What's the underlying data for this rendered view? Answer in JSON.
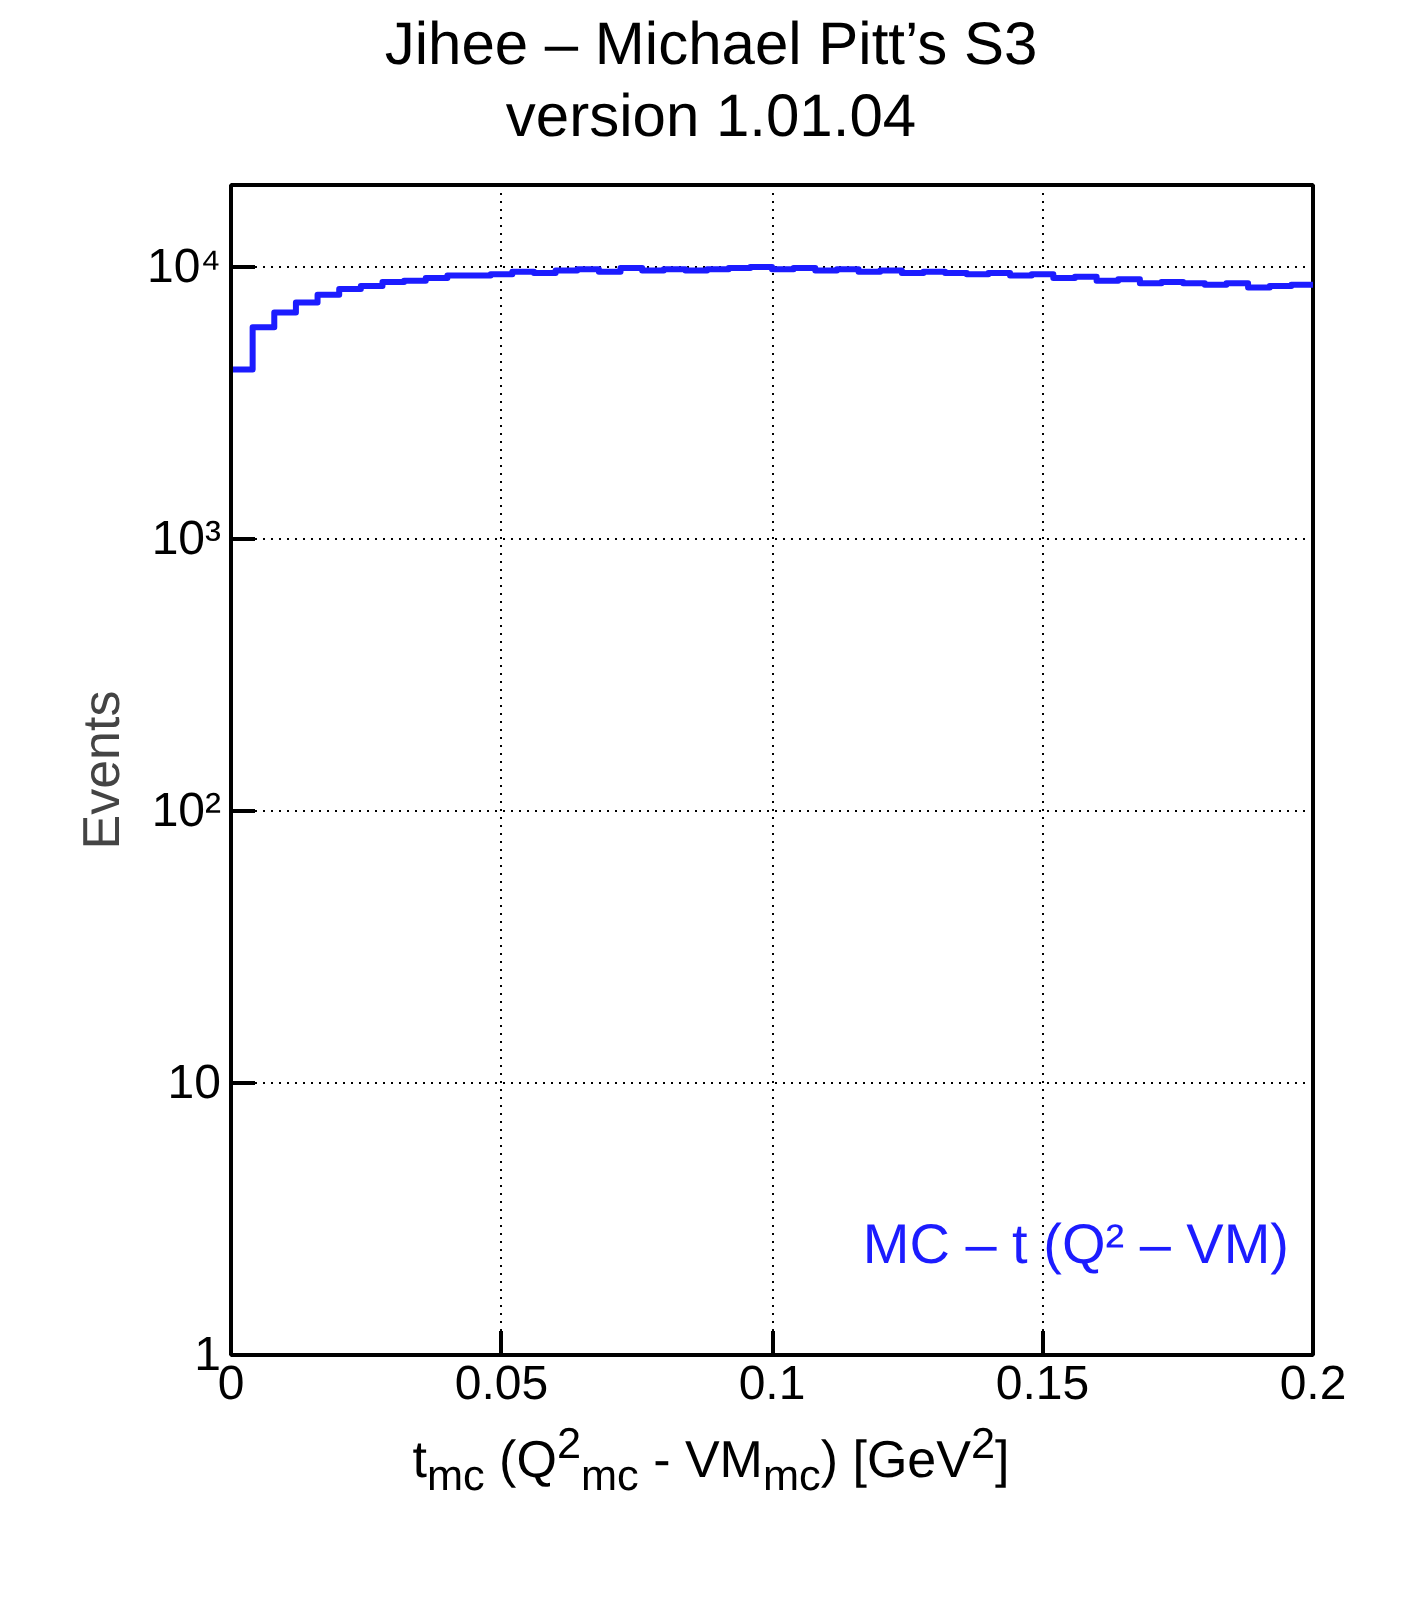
{
  "chart_data": {
    "type": "histogram",
    "title": "Jihee – Michael Pitt’s S3",
    "subtitle": "version 1.01.04",
    "xlabel": "t$_{mc}$ (Q$^{2}$$_{mc}$ - VM$_{mc}$) [GeV$^{2}$]",
    "ylabel": "Events",
    "annotations": [
      "MC – t (Q² – VM)"
    ],
    "bins": [
      0,
      0.004,
      0.008,
      0.012,
      0.016,
      0.02,
      0.024,
      0.028,
      0.032,
      0.036,
      0.04,
      0.044,
      0.048,
      0.052,
      0.056,
      0.06,
      0.064,
      0.068,
      0.072,
      0.076,
      0.08,
      0.084,
      0.088,
      0.092,
      0.096,
      0.1,
      0.104,
      0.108,
      0.112,
      0.116,
      0.12,
      0.124,
      0.128,
      0.132,
      0.136,
      0.14,
      0.144,
      0.148,
      0.152,
      0.156,
      0.16,
      0.164,
      0.168,
      0.172,
      0.176,
      0.18,
      0.184,
      0.188,
      0.192,
      0.196,
      0.2
    ],
    "values": [
      4200,
      6000,
      6800,
      7400,
      7900,
      8300,
      8500,
      8800,
      8900,
      9100,
      9300,
      9300,
      9400,
      9600,
      9500,
      9700,
      9800,
      9600,
      9900,
      9700,
      9800,
      9700,
      9800,
      9900,
      10000,
      9800,
      9900,
      9700,
      9800,
      9600,
      9700,
      9500,
      9600,
      9500,
      9400,
      9500,
      9300,
      9400,
      9100,
      9200,
      8900,
      9000,
      8700,
      8800,
      8700,
      8600,
      8700,
      8400,
      8500,
      8600
    ],
    "color": "#1c1cff",
    "log": "y",
    "xlim": [
      0,
      0.2
    ],
    "ylim": [
      1,
      20000
    ],
    "xticks": [
      0,
      0.05,
      0.1,
      0.15,
      0.2
    ],
    "yticks": [
      {
        "value": 1,
        "label": "1"
      },
      {
        "value": 10,
        "label": "10"
      },
      {
        "value": 100,
        "label": "10²"
      },
      {
        "value": 1000,
        "label": "10³"
      },
      {
        "value": 10000,
        "label": "10⁴"
      }
    ],
    "grid": true
  }
}
